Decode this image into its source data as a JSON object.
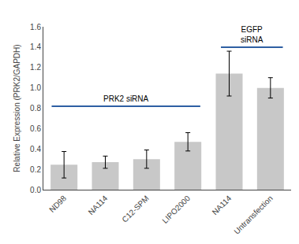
{
  "chart_data": {
    "type": "bar",
    "categories": [
      "ND98",
      "NA114",
      "C12-SPM",
      "LIPO2000",
      "NA114",
      "Untransfection"
    ],
    "values": [
      0.245,
      0.27,
      0.3,
      0.47,
      1.14,
      1.0
    ],
    "errors": [
      0.13,
      0.06,
      0.09,
      0.09,
      0.22,
      0.1
    ],
    "color": "#c8c8c8",
    "ylabel": "Relative Expression (PRK2/GAPDH)",
    "ylim": [
      0,
      1.6
    ],
    "yticks": [
      {
        "value": 0.0,
        "label": "0.0"
      },
      0.2,
      0.4,
      0.6,
      0.8,
      {
        "value": 1.0,
        "label": "1.0"
      },
      1.2,
      1.4,
      1.6
    ],
    "grid": false,
    "annotations": [
      {
        "text": "PRK2 siRNA",
        "y": 0.82,
        "x_start": -0.3,
        "x_end": 3.3,
        "color": "#2e5fa3"
      },
      {
        "text": "EGFP\nsiRNA",
        "y": 1.4,
        "x_start": 3.8,
        "x_end": 5.3,
        "color": "#2e5fa3"
      }
    ]
  }
}
